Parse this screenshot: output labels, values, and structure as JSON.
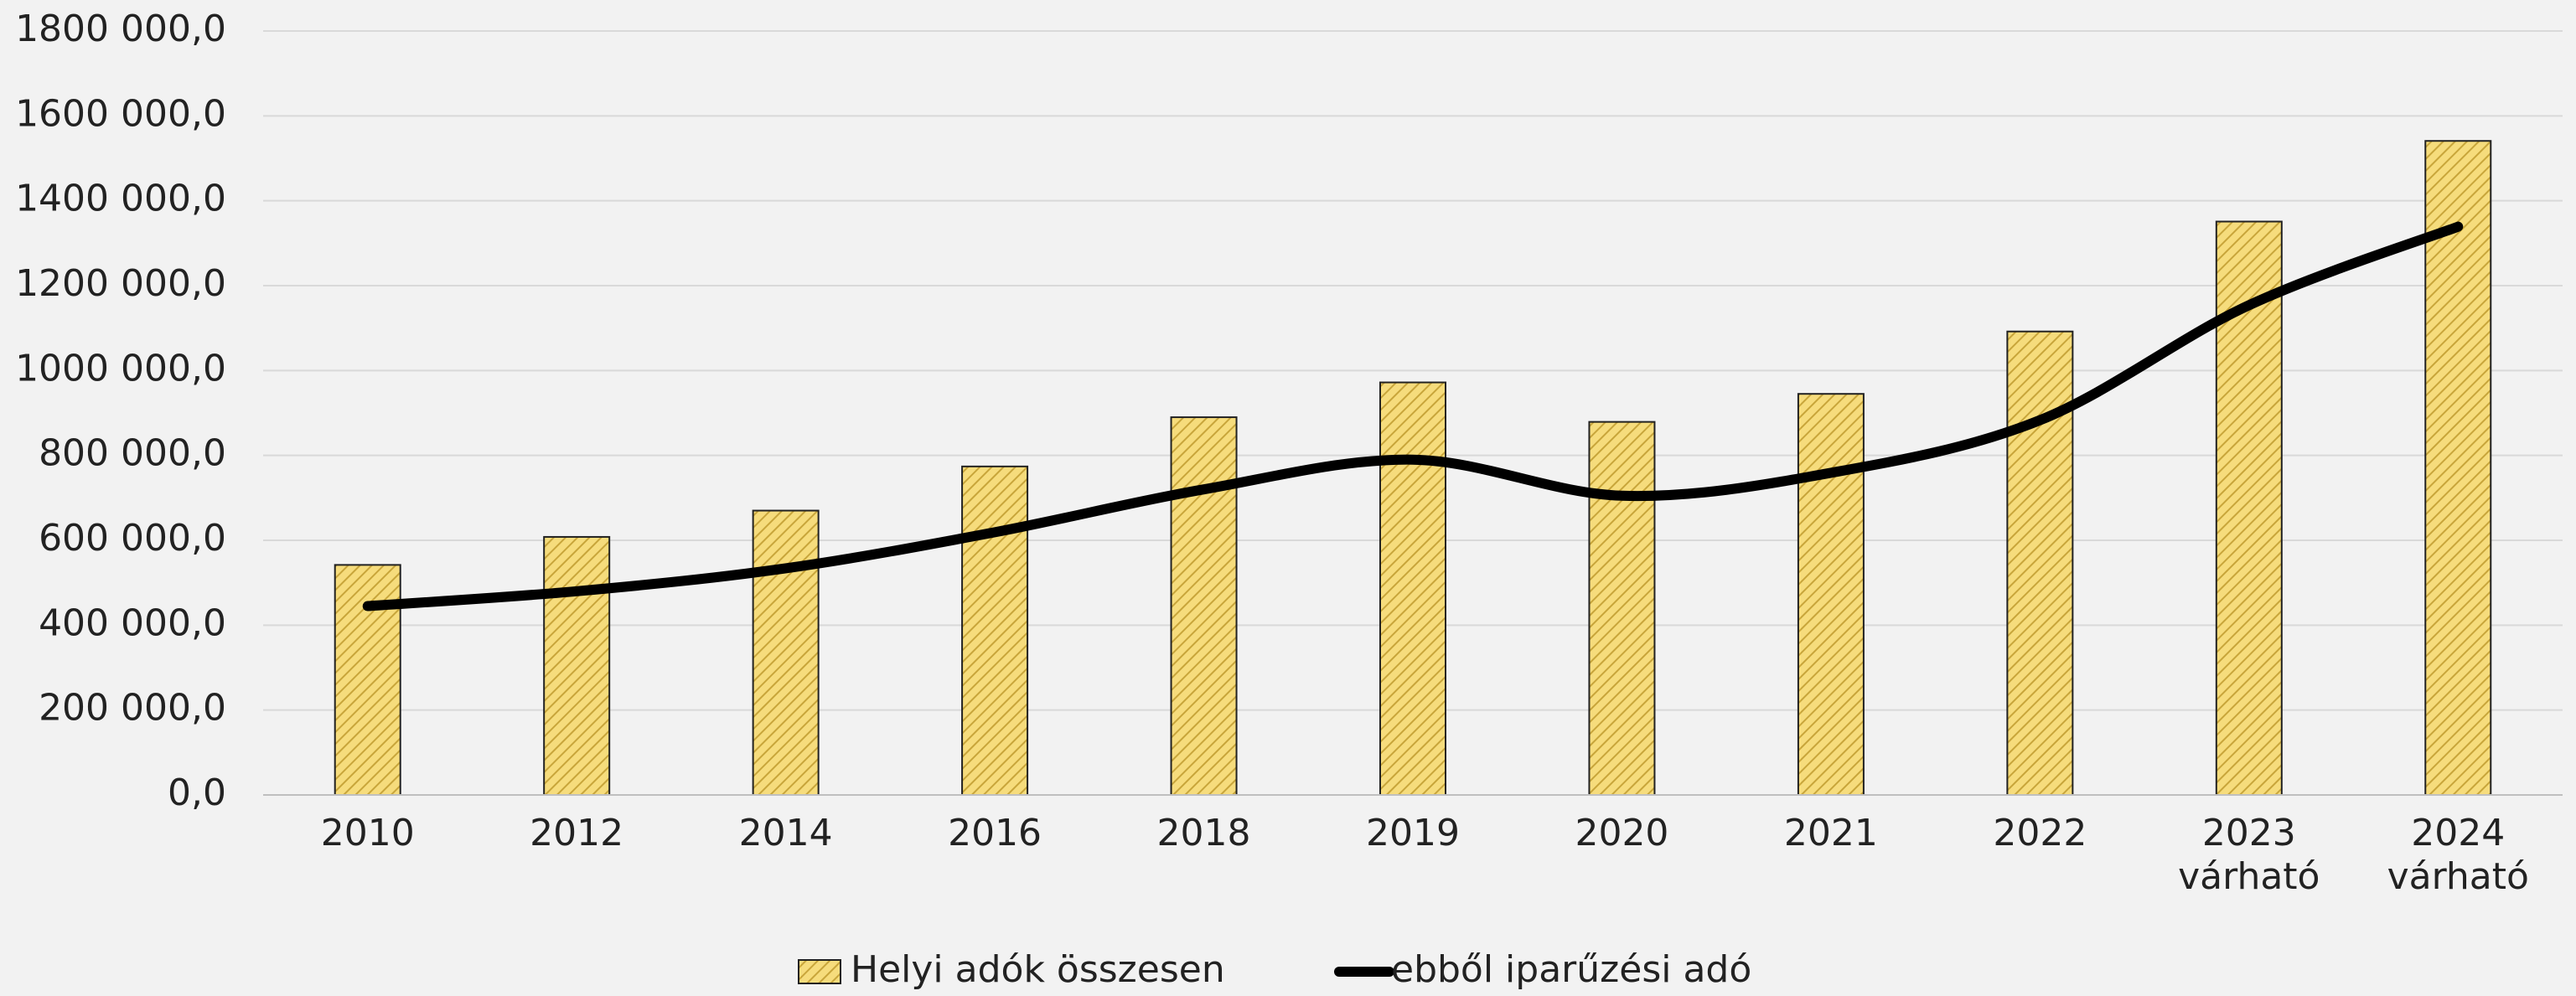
{
  "chart_data": {
    "type": "bar",
    "categories": [
      "2010",
      "2012",
      "2014",
      "2016",
      "2018",
      "2019",
      "2020",
      "2021",
      "2022",
      "2023 várható",
      "2024 várható"
    ],
    "series": [
      {
        "name": "Helyi adók összesen",
        "type": "bar",
        "color": "#f6dc7c",
        "values": [
          542000,
          608000,
          670000,
          774000,
          890000,
          972000,
          879000,
          945000,
          1092000,
          1351000,
          1541000
        ]
      },
      {
        "name": "ebből iparűzési adó",
        "type": "line",
        "color": "#000000",
        "values": [
          445000,
          480000,
          534000,
          619000,
          720000,
          790000,
          705000,
          759000,
          883000,
          1154000,
          1339000
        ]
      }
    ],
    "ylim": [
      0,
      1800000
    ],
    "yticks": [
      {
        "value": 0,
        "label": "0,0"
      },
      {
        "value": 200000,
        "label": "200 000,0"
      },
      {
        "value": 400000,
        "label": "400 000,0"
      },
      {
        "value": 600000,
        "label": "600 000,0"
      },
      {
        "value": 800000,
        "label": "800 000,0"
      },
      {
        "value": 1000000,
        "label": "1000 000,0"
      },
      {
        "value": 1200000,
        "label": "1200 000,0"
      },
      {
        "value": 1400000,
        "label": "1400 000,0"
      },
      {
        "value": 1600000,
        "label": "1600 000,0"
      },
      {
        "value": 1800000,
        "label": "1800 000,0"
      }
    ],
    "grid": true,
    "legend": "bottom"
  }
}
